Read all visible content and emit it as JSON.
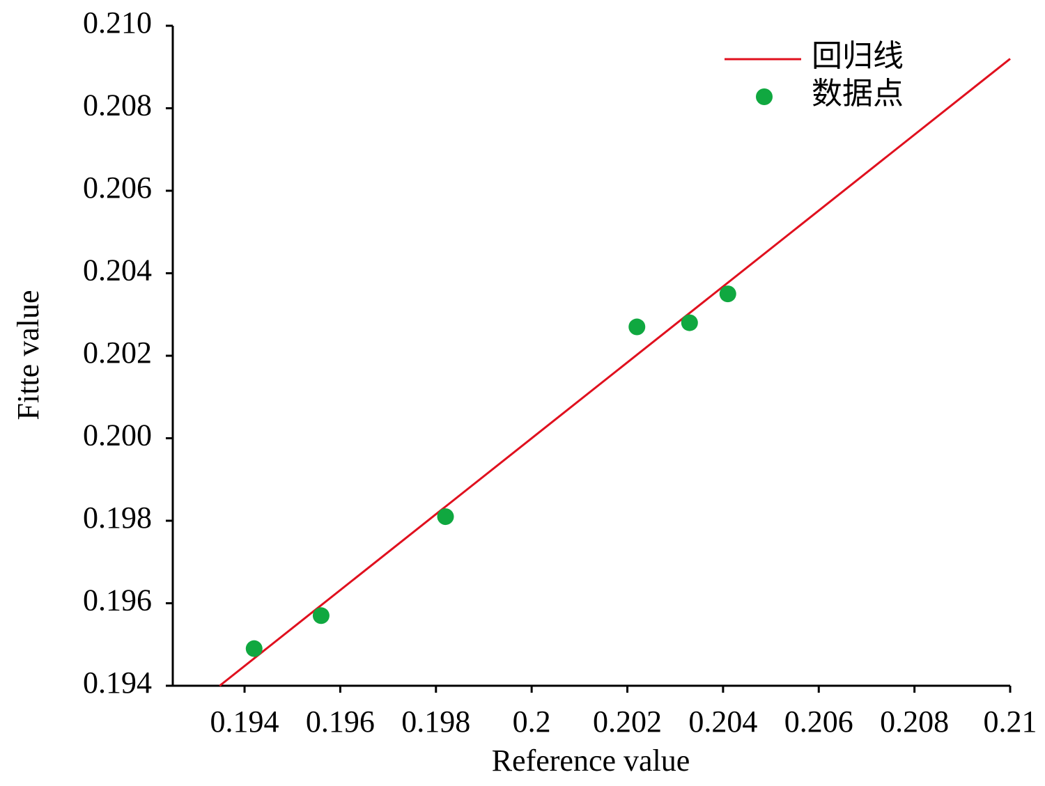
{
  "chart_data": {
    "type": "scatter",
    "xlabel": "Reference value",
    "ylabel": "Fitte value",
    "xlim": [
      0.1925,
      0.21
    ],
    "ylim": [
      0.194,
      0.21
    ],
    "xticks": [
      0.194,
      0.196,
      0.198,
      0.2,
      0.202,
      0.204,
      0.206,
      0.208,
      0.21
    ],
    "yticks": [
      0.194,
      0.196,
      0.198,
      {
        "value": 0.2,
        "label": "0.200"
      },
      0.202,
      0.204,
      0.206,
      0.208,
      {
        "value": 0.21,
        "label": "0.210"
      }
    ],
    "grid": false,
    "legend": "upper right",
    "series": [
      {
        "name": "回归线",
        "color": "#e0101e",
        "mode": "line",
        "x": [
          0.19348,
          0.21
        ],
        "values": [
          0.194,
          0.2092
        ]
      },
      {
        "name": "数据点",
        "color": "#10a840",
        "mode": "markers",
        "x": [
          0.1942,
          0.1956,
          0.1982,
          0.2022,
          0.2033,
          0.2041
        ],
        "values": [
          0.1949,
          0.1957,
          0.1981,
          0.2027,
          0.2028,
          0.2035
        ]
      }
    ]
  }
}
